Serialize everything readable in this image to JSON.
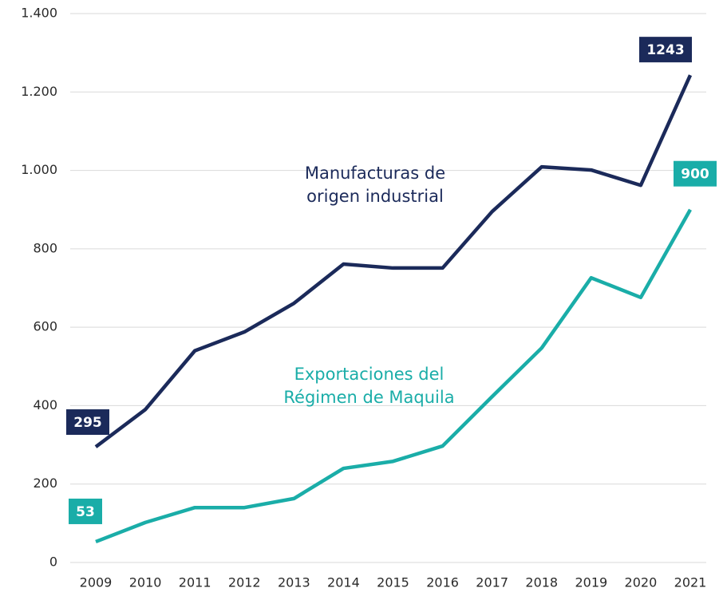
{
  "chart_data": {
    "type": "line",
    "categories": [
      "2009",
      "2010",
      "2011",
      "2012",
      "2013",
      "2014",
      "2015",
      "2016",
      "2017",
      "2018",
      "2019",
      "2020",
      "2021"
    ],
    "series": [
      {
        "name": "Manufacturas de origen industrial",
        "color": "#1b2a5a",
        "values": [
          295,
          390,
          540,
          588,
          661,
          761,
          751,
          751,
          895,
          1009,
          1001,
          962,
          1243
        ]
      },
      {
        "name": "Exportaciones del Régimen de Maquila",
        "color": "#1aada8",
        "values": [
          53,
          102,
          140,
          140,
          163,
          240,
          258,
          297,
          423,
          547,
          726,
          676,
          900
        ]
      }
    ],
    "ylim": [
      0,
      1400
    ],
    "yticks": [
      0,
      200,
      400,
      600,
      800,
      {
        "value": 1000,
        "label": "1.000"
      },
      {
        "value": 1200,
        "label": "1.200"
      },
      {
        "value": 1400,
        "label": "1.400"
      }
    ],
    "grid": true
  }
}
